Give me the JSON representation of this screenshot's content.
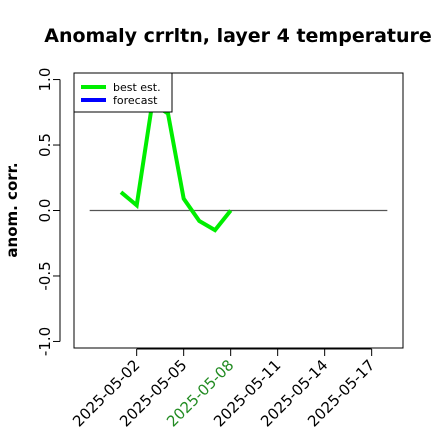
{
  "chart_data": {
    "type": "line",
    "title": "Anomaly crrltn, layer 4 temperature",
    "ylabel": "anom. corr.",
    "xlabel": "",
    "ylim": [
      -1.05,
      1.05
    ],
    "yticks": [
      -1.0,
      -0.5,
      0.0,
      0.5,
      1.0
    ],
    "ytick_labels": [
      "-1.0",
      "-0.5",
      "0.0",
      "0.5",
      "1.0"
    ],
    "x_range": [
      "2025-04-28",
      "2025-05-19"
    ],
    "xticks": [
      "2025-05-02",
      "2025-05-05",
      "2025-05-08",
      "2025-05-11",
      "2025-05-14",
      "2025-05-17"
    ],
    "xtick_colors": [
      "#000000",
      "#000000",
      "#228B22",
      "#000000",
      "#000000",
      "#000000"
    ],
    "reference_line": {
      "y": 0.0,
      "x_from": "2025-04-29",
      "x_to": "2025-05-18",
      "color": "#555555"
    },
    "series": [
      {
        "name": "best est.",
        "color": "#00ee00",
        "x": [
          "2025-05-01",
          "2025-05-02",
          "2025-05-03",
          "2025-05-04",
          "2025-05-05",
          "2025-05-06",
          "2025-05-07",
          "2025-05-08"
        ],
        "values": [
          0.14,
          0.04,
          0.82,
          0.74,
          0.09,
          -0.08,
          -0.15,
          0.0
        ]
      },
      {
        "name": "forecast",
        "color": "#0000ff",
        "x": [],
        "values": []
      }
    ],
    "legend": {
      "position": "top-left",
      "entries": [
        "best est.",
        "forecast"
      ]
    },
    "grid": false
  }
}
